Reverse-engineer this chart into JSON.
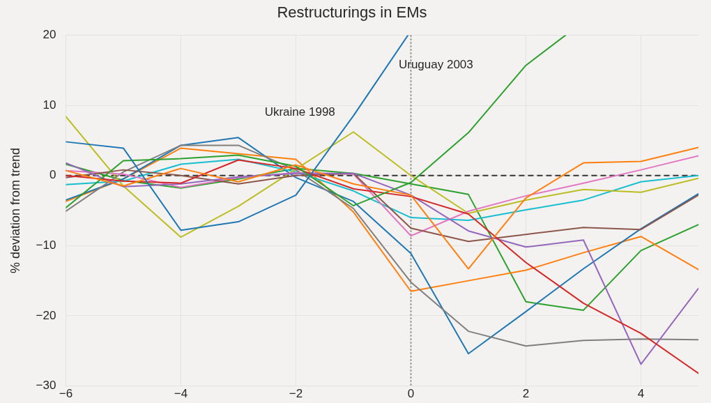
{
  "chart_data": {
    "type": "line",
    "title": "Restructurings in EMs",
    "ylabel": "% deviation from trend",
    "x": [
      -6,
      -5,
      -4,
      -3,
      -2,
      -1,
      0,
      1,
      2,
      3,
      4,
      5
    ],
    "xlim": [
      -6,
      5
    ],
    "xticks": [
      {
        "value": -6,
        "label": "−6"
      },
      {
        "value": -4,
        "label": "−4"
      },
      {
        "value": -2,
        "label": "−2"
      },
      0,
      2,
      4
    ],
    "ylim": [
      -30,
      20
    ],
    "yticks": [
      {
        "value": -30,
        "label": "−30"
      },
      {
        "value": -20,
        "label": "−20"
      },
      {
        "value": -10,
        "label": "−10"
      },
      0,
      10,
      20
    ],
    "grid": true,
    "legend": false,
    "marker": "none",
    "line_style": "solid",
    "ref_lines": [
      {
        "axis": "y",
        "value": 0,
        "color": "#333333",
        "line_style": "dashed"
      },
      {
        "axis": "x",
        "value": 0,
        "color": "#808080",
        "line_style": "dotted"
      }
    ],
    "annotations": [
      "Ukraine 1998",
      "Uruguay 2003"
    ],
    "series": [
      {
        "color": "#1f77b4",
        "x": [
          -6,
          -5,
          -4,
          -3,
          -2,
          -1,
          -0.05
        ],
        "values": [
          4.8,
          3.9,
          -7.8,
          -6.6,
          -2.8,
          8.5,
          20
        ]
      },
      {
        "color": "#ff7f0e",
        "values": [
          0.7,
          -1.5,
          1.0,
          -0.9,
          1.5,
          -1.2,
          -2.8,
          -13.3,
          -3.2,
          1.8,
          2.0,
          4.0
        ]
      },
      {
        "color": "#2ca02c",
        "x": [
          -6,
          -5,
          -4,
          -3,
          -2,
          -1,
          0,
          1,
          2,
          2.69
        ],
        "values": [
          -4.6,
          2.1,
          2.4,
          2.9,
          1.3,
          -4.3,
          -1.0,
          6.1,
          15.7,
          20
        ]
      },
      {
        "color": "#d62728",
        "values": [
          0,
          -0.8,
          -1.1,
          2.2,
          1.0,
          -1.9,
          -3.0,
          -5.5,
          -12.4,
          -18.2,
          -22.5,
          -28.2
        ]
      },
      {
        "color": "#9467bd",
        "values": [
          1.8,
          -1.6,
          -1.2,
          -0.2,
          0.3,
          0.3,
          -2.8,
          -7.9,
          -10.2,
          -9.2,
          -26.9,
          -16.1
        ]
      },
      {
        "color": "#8c564b",
        "values": [
          -0.3,
          0.8,
          0,
          -1.2,
          0,
          0.3,
          -7.5,
          -9.4,
          -8.4,
          -7.4,
          -7.7,
          -2.8
        ]
      },
      {
        "color": "#e377c2",
        "values": [
          0.7,
          0.2,
          -1.7,
          -0.3,
          0.4,
          0.2,
          -8.6,
          -5.1,
          -2.9,
          -1.1,
          0.8,
          2.8
        ]
      },
      {
        "color": "#7f7f7f",
        "values": [
          -5.1,
          0.5,
          4.3,
          4.3,
          0.8,
          -4.7,
          -15.2,
          -22.2,
          -24.3,
          -23.5,
          -23.3,
          -23.4
        ]
      },
      {
        "color": "#bcbd22",
        "values": [
          8.4,
          -1.5,
          -8.8,
          -4.4,
          0.9,
          6.2,
          0,
          -5.4,
          -3.5,
          -2.0,
          -2.4,
          -0.4
        ]
      },
      {
        "color": "#17becf",
        "values": [
          -1.3,
          -0.8,
          1.6,
          2.3,
          0.5,
          -2.2,
          -6.0,
          -6.4,
          -4.9,
          -3.5,
          -0.9,
          0
        ]
      },
      {
        "color": "#1f77b4",
        "values": [
          -3.5,
          -0.5,
          4.3,
          5.4,
          -0.3,
          -3.7,
          -11.1,
          -25.4,
          -19.4,
          -13.3,
          -7.6,
          -2.6
        ]
      },
      {
        "color": "#ff7f0e",
        "values": [
          -3.7,
          -0.5,
          3.9,
          3.1,
          2.3,
          -5.2,
          -16.5,
          -15.0,
          -13.5,
          -11.0,
          -8.7,
          -13.4
        ]
      },
      {
        "color": "#2ca02c",
        "values": [
          1.6,
          -0.7,
          -1.8,
          -0.5,
          1.0,
          0.3,
          -1.2,
          -2.7,
          -18.0,
          -19.2,
          -10.7,
          -7.0
        ]
      }
    ]
  }
}
